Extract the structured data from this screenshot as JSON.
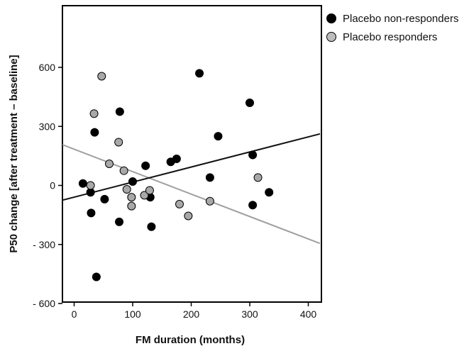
{
  "chart_data": {
    "type": "scatter",
    "xlabel": "FM duration  (months)",
    "ylabel": "P50 change [after treatment – baseline]",
    "xlim": [
      -20,
      420
    ],
    "ylim": [
      -600,
      900
    ],
    "xticks": [
      0,
      100,
      200,
      300,
      400
    ],
    "yticks": [
      -600,
      -300,
      0,
      300,
      600
    ],
    "xtick_labels": [
      "0",
      "100",
      "200",
      "300",
      "400"
    ],
    "ytick_labels": [
      "- 600",
      "- 300",
      "0",
      "300",
      "600"
    ],
    "grid": false,
    "legend_position": "outside-top-right",
    "series": [
      {
        "name": "Placebo non-responders",
        "color": "#000000",
        "points": [
          [
            15,
            10
          ],
          [
            28,
            -35
          ],
          [
            29,
            -140
          ],
          [
            35,
            270
          ],
          [
            38,
            -465
          ],
          [
            52,
            -70
          ],
          [
            77,
            -185
          ],
          [
            78,
            375
          ],
          [
            100,
            20
          ],
          [
            122,
            100
          ],
          [
            130,
            -60
          ],
          [
            132,
            -210
          ],
          [
            165,
            120
          ],
          [
            175,
            135
          ],
          [
            214,
            570
          ],
          [
            232,
            40
          ],
          [
            246,
            250
          ],
          [
            300,
            420
          ],
          [
            305,
            155
          ],
          [
            305,
            -100
          ],
          [
            333,
            -35
          ]
        ],
        "trend": [
          [
            -20,
            -75
          ],
          [
            420,
            262
          ]
        ]
      },
      {
        "name": "Placebo responders",
        "color": "#a8a8a8",
        "points": [
          [
            28,
            0
          ],
          [
            34,
            365
          ],
          [
            47,
            555
          ],
          [
            60,
            110
          ],
          [
            76,
            220
          ],
          [
            85,
            75
          ],
          [
            90,
            -20
          ],
          [
            98,
            -60
          ],
          [
            98,
            -105
          ],
          [
            120,
            -50
          ],
          [
            129,
            -25
          ],
          [
            180,
            -95
          ],
          [
            195,
            -155
          ],
          [
            232,
            -80
          ],
          [
            314,
            40
          ]
        ],
        "trend": [
          [
            -20,
            207
          ],
          [
            420,
            -295
          ]
        ]
      }
    ]
  }
}
